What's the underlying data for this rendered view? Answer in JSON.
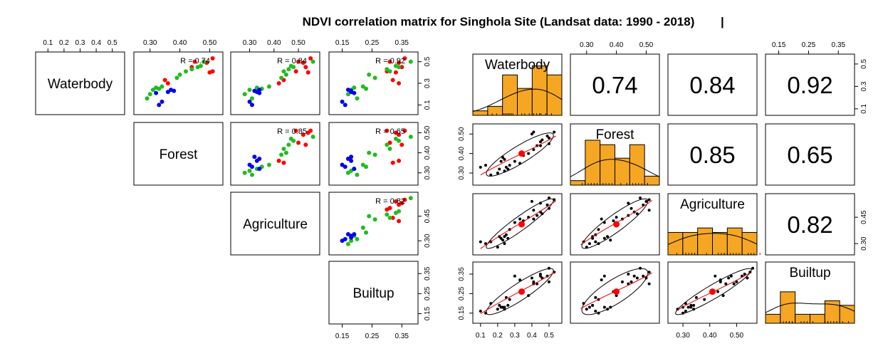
{
  "title": "NDVI correlation matrix for Singhola Site (Landsat data: 1990 - 2018)",
  "title_mark": "|",
  "variables": [
    "Waterbody",
    "Forest",
    "Agriculture",
    "Builtup"
  ],
  "colors": {
    "red": "#ff0000",
    "green": "#22bb22",
    "blue": "#0000ee",
    "bar": "#f5a623",
    "fit": "#dd0000",
    "black": "#000000"
  },
  "left_matrix": {
    "ticks": {
      "top_Waterbody": [
        "0.1",
        "0.2",
        "0.3",
        "0.4",
        "0.5"
      ],
      "top_Forest": [
        "0.30",
        "0.40",
        "0.50"
      ],
      "top_Agriculture": [
        "0.30",
        "0.40",
        "0.50"
      ],
      "top_Builtup": [
        "0.15",
        "0.25",
        "0.35"
      ],
      "right_Waterbody": [
        "0.5",
        "0.3",
        "0.1"
      ],
      "right_Forest": [
        "0.50",
        "0.40",
        "0.30"
      ],
      "right_Agriculture": [
        "0.45",
        "0.30"
      ],
      "right_Builtup": [
        "0.35",
        "0.25",
        "0.15"
      ],
      "bottom_Builtup": [
        "0.15",
        "0.25",
        "0.35"
      ]
    },
    "r_labels": {
      "Waterbody_Forest": "R = 0.74",
      "Waterbody_Agriculture": "R = 0.84",
      "Waterbody_Builtup": "R = 0.92",
      "Forest_Agriculture": "R = 0.85",
      "Forest_Builtup": "R = 0.65",
      "Agriculture_Builtup": "R = 0.82"
    }
  },
  "right_matrix": {
    "ticks": {
      "top_Forest": [
        "0.30",
        "0.40",
        "0.50"
      ],
      "top_Builtup": [
        "0.15",
        "0.25",
        "0.35"
      ],
      "right_Waterbody": [
        "0.5",
        "0.3",
        "0.1"
      ],
      "right_Agriculture": [
        "0.45",
        "0.30"
      ],
      "left_Forest": [
        "0.50",
        "0.40",
        "0.30"
      ],
      "left_Builtup": [
        "0.35",
        "0.25",
        "0.15"
      ],
      "bottom_Waterbody": [
        "0.1",
        "0.2",
        "0.3",
        "0.4",
        "0.5"
      ],
      "bottom_Agriculture": [
        "0.30",
        "0.40",
        "0.50"
      ]
    },
    "correlations": {
      "Waterbody_Forest": "0.74",
      "Waterbody_Agriculture": "0.84",
      "Waterbody_Builtup": "0.92",
      "Forest_Agriculture": "0.85",
      "Forest_Builtup": "0.65",
      "Agriculture_Builtup": "0.82"
    }
  },
  "chart_data": [
    {
      "type": "scatter",
      "panel": "left pairs matrix (upper triangle), points colored red / green / blue",
      "variables": [
        "Waterbody",
        "Forest",
        "Agriculture",
        "Builtup"
      ],
      "ranges": {
        "Waterbody": [
          0.05,
          0.55
        ],
        "Forest": [
          0.26,
          0.53
        ],
        "Agriculture": [
          0.24,
          0.57
        ],
        "Builtup": [
          0.12,
          0.39
        ]
      },
      "points": [
        {
          "g": "red",
          "Waterbody": 0.53,
          "Forest": 0.51,
          "Agriculture": 0.55,
          "Builtup": 0.36
        },
        {
          "g": "red",
          "Waterbody": 0.49,
          "Forest": 0.49,
          "Agriculture": 0.52,
          "Builtup": 0.34
        },
        {
          "g": "red",
          "Waterbody": 0.5,
          "Forest": 0.45,
          "Agriculture": 0.5,
          "Builtup": 0.31
        },
        {
          "g": "red",
          "Waterbody": 0.45,
          "Forest": 0.44,
          "Agriculture": 0.53,
          "Builtup": 0.35
        },
        {
          "g": "red",
          "Waterbody": 0.41,
          "Forest": 0.51,
          "Agriculture": 0.49,
          "Builtup": 0.3
        },
        {
          "g": "red",
          "Waterbody": 0.4,
          "Forest": 0.5,
          "Agriculture": 0.54,
          "Builtup": 0.33
        },
        {
          "g": "red",
          "Waterbody": 0.3,
          "Forest": 0.36,
          "Agriculture": 0.42,
          "Builtup": 0.34
        },
        {
          "g": "red",
          "Waterbody": 0.33,
          "Forest": 0.35,
          "Agriculture": 0.44,
          "Builtup": 0.32
        },
        {
          "g": "green",
          "Waterbody": 0.5,
          "Forest": 0.48,
          "Agriculture": 0.56,
          "Builtup": 0.38
        },
        {
          "g": "green",
          "Waterbody": 0.45,
          "Forest": 0.46,
          "Agriculture": 0.48,
          "Builtup": 0.34
        },
        {
          "g": "green",
          "Waterbody": 0.46,
          "Forest": 0.47,
          "Agriculture": 0.47,
          "Builtup": 0.33
        },
        {
          "g": "green",
          "Waterbody": 0.43,
          "Forest": 0.44,
          "Agriculture": 0.46,
          "Builtup": 0.3
        },
        {
          "g": "green",
          "Waterbody": 0.41,
          "Forest": 0.42,
          "Agriculture": 0.44,
          "Builtup": 0.31
        },
        {
          "g": "green",
          "Waterbody": 0.35,
          "Forest": 0.39,
          "Agriculture": 0.43,
          "Builtup": 0.26
        },
        {
          "g": "green",
          "Waterbody": 0.38,
          "Forest": 0.4,
          "Agriculture": 0.45,
          "Builtup": 0.24
        },
        {
          "g": "green",
          "Waterbody": 0.27,
          "Forest": 0.34,
          "Agriculture": 0.38,
          "Builtup": 0.22
        },
        {
          "g": "green",
          "Waterbody": 0.26,
          "Forest": 0.32,
          "Agriculture": 0.33,
          "Builtup": 0.19
        },
        {
          "g": "green",
          "Waterbody": 0.24,
          "Forest": 0.31,
          "Agriculture": 0.3,
          "Builtup": 0.18
        },
        {
          "g": "green",
          "Waterbody": 0.2,
          "Forest": 0.3,
          "Agriculture": 0.28,
          "Builtup": 0.17
        },
        {
          "g": "green",
          "Waterbody": 0.16,
          "Forest": 0.29,
          "Agriculture": 0.31,
          "Builtup": 0.2
        },
        {
          "g": "green",
          "Waterbody": 0.25,
          "Forest": 0.33,
          "Agriculture": 0.35,
          "Builtup": 0.23
        },
        {
          "g": "blue",
          "Waterbody": 0.23,
          "Forest": 0.38,
          "Agriculture": 0.32,
          "Builtup": 0.18
        },
        {
          "g": "blue",
          "Waterbody": 0.24,
          "Forest": 0.37,
          "Agriculture": 0.34,
          "Builtup": 0.17
        },
        {
          "g": "blue",
          "Waterbody": 0.22,
          "Forest": 0.36,
          "Agriculture": 0.33,
          "Builtup": 0.18
        },
        {
          "g": "blue",
          "Waterbody": 0.13,
          "Forest": 0.34,
          "Agriculture": 0.3,
          "Builtup": 0.15
        },
        {
          "g": "blue",
          "Waterbody": 0.1,
          "Forest": 0.33,
          "Agriculture": 0.31,
          "Builtup": 0.16
        },
        {
          "g": "blue",
          "Waterbody": 0.21,
          "Forest": 0.32,
          "Agriculture": 0.34,
          "Builtup": 0.19
        }
      ],
      "r_values": {
        "Waterbody_Forest": 0.74,
        "Waterbody_Agriculture": 0.84,
        "Waterbody_Builtup": 0.92,
        "Forest_Agriculture": 0.85,
        "Forest_Builtup": 0.65,
        "Agriculture_Builtup": 0.82
      }
    },
    {
      "type": "scatter",
      "panel": "right pairs matrix (lower triangle scatter + loess + ellipse, diagonal histograms)",
      "ranges": {
        "Waterbody": [
          0.08,
          0.55
        ],
        "Forest": [
          0.26,
          0.53
        ],
        "Agriculture": [
          0.26,
          0.56
        ],
        "Builtup": [
          0.12,
          0.39
        ]
      },
      "means": {
        "Waterbody": 0.34,
        "Forest": 0.4,
        "Agriculture": 0.41,
        "Builtup": 0.26
      },
      "histograms": {
        "Waterbody": {
          "edges": [
            0.0,
            0.1,
            0.2,
            0.3,
            0.4,
            0.5,
            0.6
          ],
          "counts": [
            1,
            2,
            9,
            6,
            11,
            9
          ]
        },
        "Forest": {
          "edges": [
            0.25,
            0.3,
            0.35,
            0.4,
            0.45,
            0.5,
            0.55
          ],
          "counts": [
            1,
            10,
            9,
            6,
            9,
            2
          ]
        },
        "Agriculture": {
          "edges": [
            0.25,
            0.3,
            0.35,
            0.4,
            0.45,
            0.5,
            0.55
          ],
          "counts": [
            5,
            5,
            6,
            5,
            6,
            5
          ]
        },
        "Builtup": {
          "edges": [
            0.1,
            0.15,
            0.2,
            0.25,
            0.3,
            0.35,
            0.4
          ],
          "counts": [
            2,
            7,
            2,
            2,
            5,
            4
          ]
        }
      },
      "correlations": {
        "Waterbody_Forest": 0.74,
        "Waterbody_Agriculture": 0.84,
        "Waterbody_Builtup": 0.92,
        "Forest_Agriculture": 0.85,
        "Forest_Builtup": 0.65,
        "Agriculture_Builtup": 0.82
      }
    }
  ]
}
